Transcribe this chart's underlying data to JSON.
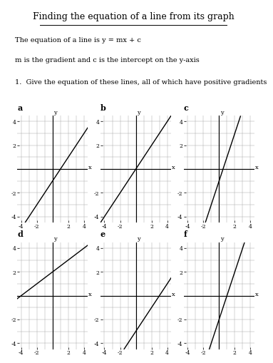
{
  "title": "Finding the equation of a line from its graph",
  "line1": "The equation of a line is y = mx + c",
  "line2": "m is the gradient and c is the intercept on the y-axis",
  "question": "1.  Give the equation of these lines, all of which have positive gradients",
  "subplots": [
    {
      "label": "a",
      "slope": 1,
      "intercept": -1
    },
    {
      "label": "b",
      "slope": 1,
      "intercept": 0
    },
    {
      "label": "c",
      "slope": 2,
      "intercept": -1
    },
    {
      "label": "d",
      "slope": 0.5,
      "intercept": 2
    },
    {
      "label": "e",
      "slope": 1,
      "intercept": -3
    },
    {
      "label": "f",
      "slope": 2,
      "intercept": -2
    }
  ],
  "xlim": [
    -4.5,
    4.5
  ],
  "ylim": [
    -4.5,
    4.5
  ],
  "xticks": [
    -4,
    -2,
    2,
    4
  ],
  "yticks": [
    -4,
    -2,
    2,
    4
  ],
  "grid_color": "#aaaaaa",
  "axis_color": "#000000",
  "line_color": "#000000",
  "bg_color": "#ffffff",
  "font_size_title": 9,
  "font_size_text": 7,
  "font_size_label": 8,
  "font_size_tick": 5.5
}
